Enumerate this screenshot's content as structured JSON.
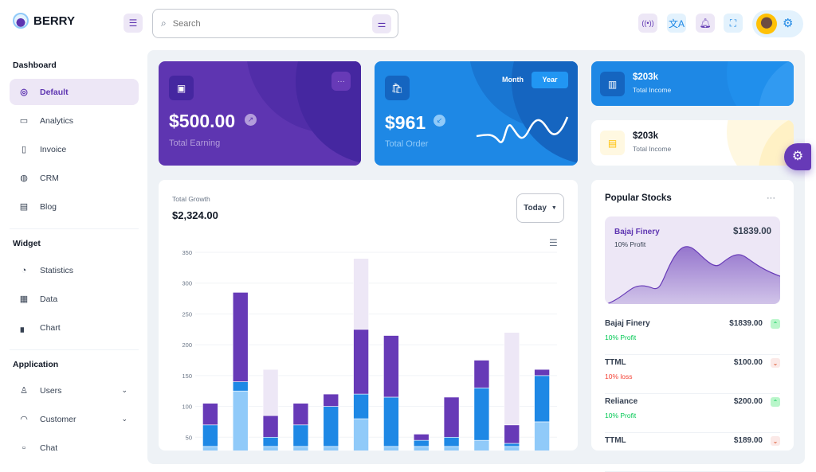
{
  "app": {
    "name": "BERRY"
  },
  "header": {
    "search_placeholder": "Search",
    "icons": [
      "menu-icon",
      "search-icon",
      "filter-icon",
      "broadcast-icon",
      "translate-icon",
      "bell-icon",
      "fullscreen-icon",
      "avatar",
      "gear-icon"
    ]
  },
  "sidebar": {
    "sections": [
      {
        "title": "Dashboard",
        "items": [
          {
            "label": "Default",
            "icon": "dashboard-icon",
            "active": true
          },
          {
            "label": "Analytics",
            "icon": "device-analytics-icon"
          },
          {
            "label": "Invoice",
            "icon": "invoice-icon"
          },
          {
            "label": "CRM",
            "icon": "lifebuoy-icon"
          },
          {
            "label": "Blog",
            "icon": "article-icon"
          }
        ]
      },
      {
        "title": "Widget",
        "items": [
          {
            "label": "Statistics",
            "icon": "statistics-icon"
          },
          {
            "label": "Data",
            "icon": "clipboard-icon"
          },
          {
            "label": "Chart",
            "icon": "chart-icon"
          }
        ]
      },
      {
        "title": "Application",
        "items": [
          {
            "label": "Users",
            "icon": "user-check-icon",
            "expandable": true
          },
          {
            "label": "Customer",
            "icon": "headset-icon",
            "expandable": true
          },
          {
            "label": "Chat",
            "icon": "chat-icon"
          }
        ]
      }
    ]
  },
  "cards": {
    "earning": {
      "value": "$500.00",
      "label": "Total Earning",
      "color": "#5e35b1"
    },
    "order": {
      "value": "$961",
      "label": "Total Order",
      "toggle": [
        "Month",
        "Year"
      ],
      "selected": "Year",
      "color": "#1e88e5"
    },
    "income_dark": {
      "value": "$203k",
      "label": "Total Income"
    },
    "income_light": {
      "value": "$203k",
      "label": "Total Income"
    }
  },
  "growth": {
    "title": "Total Growth",
    "value": "$2,324.00",
    "period": "Today"
  },
  "chart_data": {
    "type": "bar",
    "stacked": true,
    "ylim": [
      0,
      350
    ],
    "yticks": [
      50,
      100,
      150,
      200,
      250,
      300,
      350
    ],
    "grid": true,
    "series": [
      {
        "values": [
          35,
          125,
          35,
          35,
          35,
          80,
          35,
          35,
          35,
          45,
          35,
          75
        ],
        "color": "#90caf9"
      },
      {
        "values": [
          35,
          15,
          15,
          35,
          65,
          40,
          80,
          10,
          15,
          85,
          5,
          75
        ],
        "color": "#1e88e5"
      },
      {
        "values": [
          35,
          145,
          35,
          35,
          20,
          105,
          100,
          10,
          65,
          45,
          30,
          10
        ],
        "color": "#673ab7"
      },
      {
        "values": [
          0,
          0,
          75,
          0,
          0,
          115,
          0,
          0,
          0,
          0,
          150,
          0
        ],
        "color": "#ede7f6"
      }
    ]
  },
  "stocks": {
    "title": "Popular Stocks",
    "featured": {
      "name": "Bajaj Finery",
      "sub": "10% Profit",
      "value": "$1839.00"
    },
    "rows": [
      {
        "name": "Bajaj Finery",
        "change": "10% Profit",
        "value": "$1839.00",
        "trend": "up"
      },
      {
        "name": "TTML",
        "change": "10% loss",
        "value": "$100.00",
        "trend": "down"
      },
      {
        "name": "Reliance",
        "change": "10% Profit",
        "value": "$200.00",
        "trend": "up"
      },
      {
        "name": "TTML",
        "change": "",
        "value": "$189.00",
        "trend": "down"
      }
    ]
  }
}
